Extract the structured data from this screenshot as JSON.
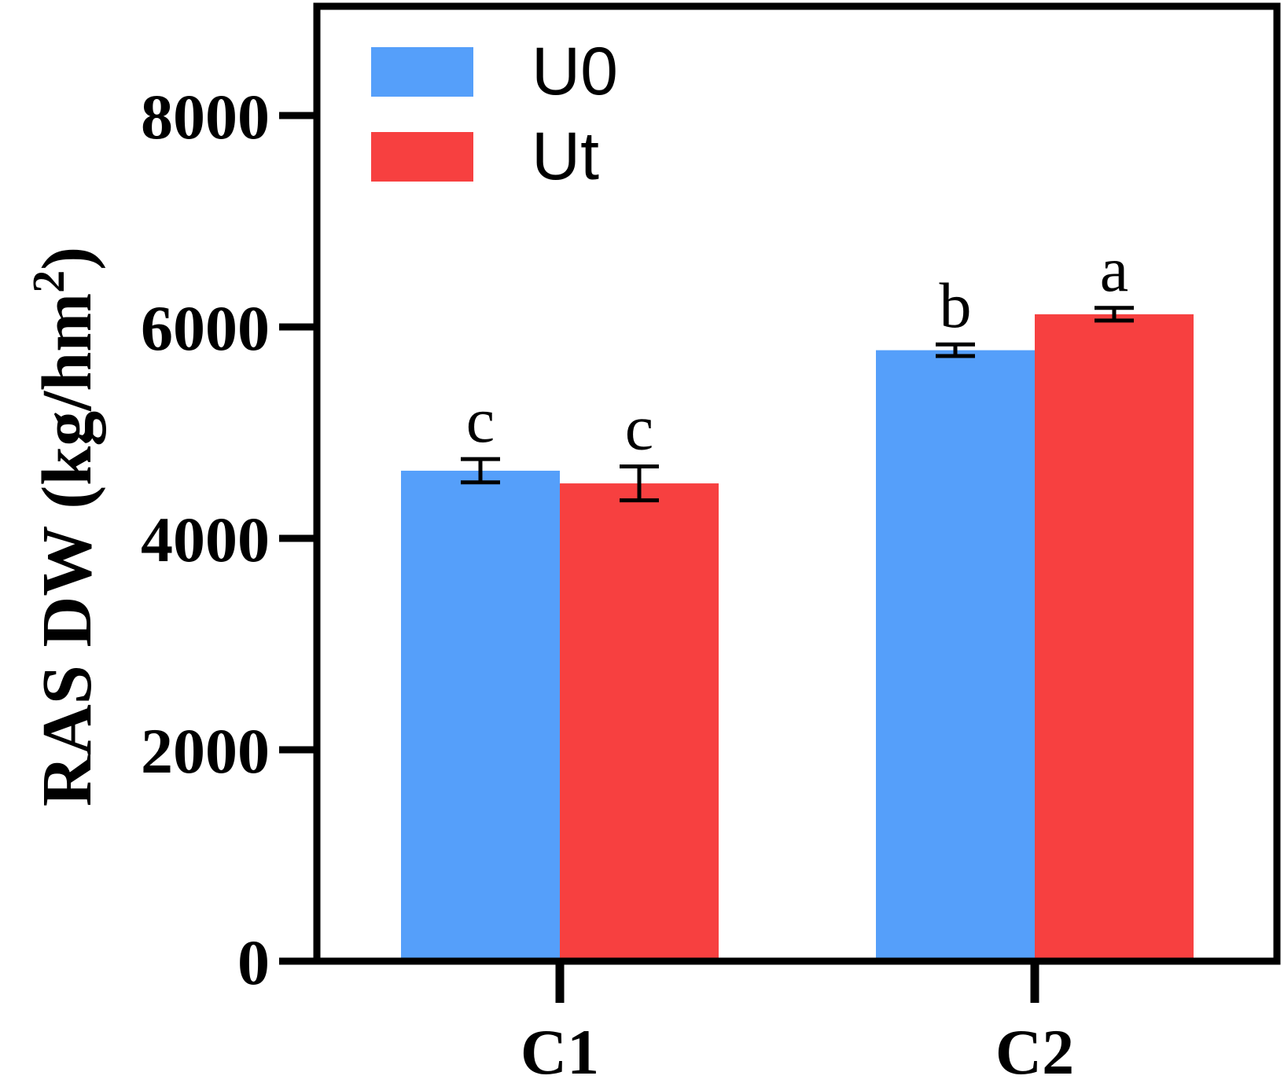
{
  "chart_data": {
    "type": "bar",
    "categories": [
      "C1",
      "C2"
    ],
    "series": [
      {
        "name": "U0",
        "color": "#559ffa",
        "values": [
          4640,
          5780
        ],
        "errors": [
          110,
          55
        ],
        "sig_labels": [
          "c",
          "b"
        ]
      },
      {
        "name": "Ut",
        "color": "#f74040",
        "values": [
          4520,
          6120
        ],
        "errors": [
          160,
          60
        ],
        "sig_labels": [
          "c",
          "a"
        ]
      }
    ],
    "ylabel_main": "RAS DW (kg/hm",
    "ylabel_sup": "2",
    "ylabel_close": ")",
    "ylim": [
      0,
      9000
    ],
    "yticks": [
      0,
      2000,
      4000,
      6000,
      8000
    ],
    "ytick_labels": [
      "0",
      "2000",
      "4000",
      "6000",
      "8000"
    ],
    "legend_position": "top-left",
    "grid": false
  }
}
